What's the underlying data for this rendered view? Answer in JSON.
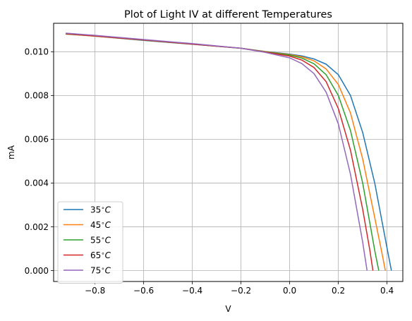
{
  "chart_data": {
    "type": "line",
    "title": "Plot of Light IV at different Temperatures",
    "xlabel": "V",
    "ylabel": "mA",
    "xlim": [
      -0.97,
      0.465
    ],
    "ylim": [
      -0.0005,
      0.0113
    ],
    "xticks": [
      -0.8,
      -0.6,
      -0.4,
      -0.2,
      0.0,
      0.2,
      0.4
    ],
    "xtick_labels": [
      "−0.8",
      "−0.6",
      "−0.4",
      "−0.2",
      "0.0",
      "0.2",
      "0.4"
    ],
    "yticks": [
      0.0,
      0.002,
      0.004,
      0.006,
      0.008,
      0.01
    ],
    "ytick_labels": [
      "0.000",
      "0.002",
      "0.004",
      "0.006",
      "0.008",
      "0.010"
    ],
    "grid": true,
    "legend_position": "lower-left",
    "series": [
      {
        "name": "35°C",
        "label_base": "35",
        "label_unit": "C",
        "color": "#1f77b4",
        "x": [
          -0.92,
          -0.8,
          -0.6,
          -0.4,
          -0.2,
          -0.1,
          0.0,
          0.05,
          0.1,
          0.15,
          0.2,
          0.25,
          0.3,
          0.35,
          0.4,
          0.418
        ],
        "y": [
          0.01082,
          0.01071,
          0.01052,
          0.01034,
          0.01016,
          0.01001,
          0.00989,
          0.00981,
          0.00967,
          0.00943,
          0.00895,
          0.008,
          0.00631,
          0.00398,
          0.00103,
          0.0
        ]
      },
      {
        "name": "45°C",
        "label_base": "45",
        "label_unit": "C",
        "color": "#ff7f0e",
        "x": [
          -0.92,
          -0.8,
          -0.6,
          -0.4,
          -0.2,
          -0.1,
          0.0,
          0.05,
          0.1,
          0.15,
          0.2,
          0.25,
          0.3,
          0.35,
          0.38,
          0.393
        ],
        "y": [
          0.01081,
          0.01071,
          0.01053,
          0.01035,
          0.01016,
          0.01,
          0.00987,
          0.00977,
          0.00958,
          0.00921,
          0.0085,
          0.0072,
          0.0051,
          0.0024,
          0.00075,
          0.0
        ]
      },
      {
        "name": "55°C",
        "label_base": "55",
        "label_unit": "C",
        "color": "#2ca02c",
        "x": [
          -0.92,
          -0.8,
          -0.6,
          -0.4,
          -0.2,
          -0.1,
          0.0,
          0.05,
          0.1,
          0.15,
          0.2,
          0.25,
          0.3,
          0.35,
          0.366
        ],
        "y": [
          0.01081,
          0.01072,
          0.01053,
          0.01035,
          0.01016,
          0.00999,
          0.00985,
          0.00971,
          0.00945,
          0.00895,
          0.008,
          0.0064,
          0.004,
          0.0009,
          0.0
        ]
      },
      {
        "name": "65°C",
        "label_base": "65",
        "label_unit": "C",
        "color": "#d62728",
        "x": [
          -0.92,
          -0.8,
          -0.6,
          -0.4,
          -0.2,
          -0.1,
          0.0,
          0.05,
          0.1,
          0.15,
          0.2,
          0.25,
          0.3,
          0.33,
          0.342
        ],
        "y": [
          0.01082,
          0.01072,
          0.01054,
          0.01035,
          0.01016,
          0.00998,
          0.0098,
          0.00962,
          0.00928,
          0.00863,
          0.0074,
          0.0055,
          0.0028,
          0.0009,
          0.0
        ]
      },
      {
        "name": "75°C",
        "label_base": "75",
        "label_unit": "C",
        "color": "#9467bd",
        "x": [
          -0.92,
          -0.8,
          -0.6,
          -0.4,
          -0.2,
          -0.1,
          0.0,
          0.05,
          0.1,
          0.15,
          0.2,
          0.25,
          0.3,
          0.318
        ],
        "y": [
          0.01085,
          0.01075,
          0.01056,
          0.01037,
          0.01016,
          0.00997,
          0.00972,
          0.00946,
          0.009,
          0.00815,
          0.0067,
          0.0044,
          0.0013,
          0.0
        ]
      }
    ]
  }
}
